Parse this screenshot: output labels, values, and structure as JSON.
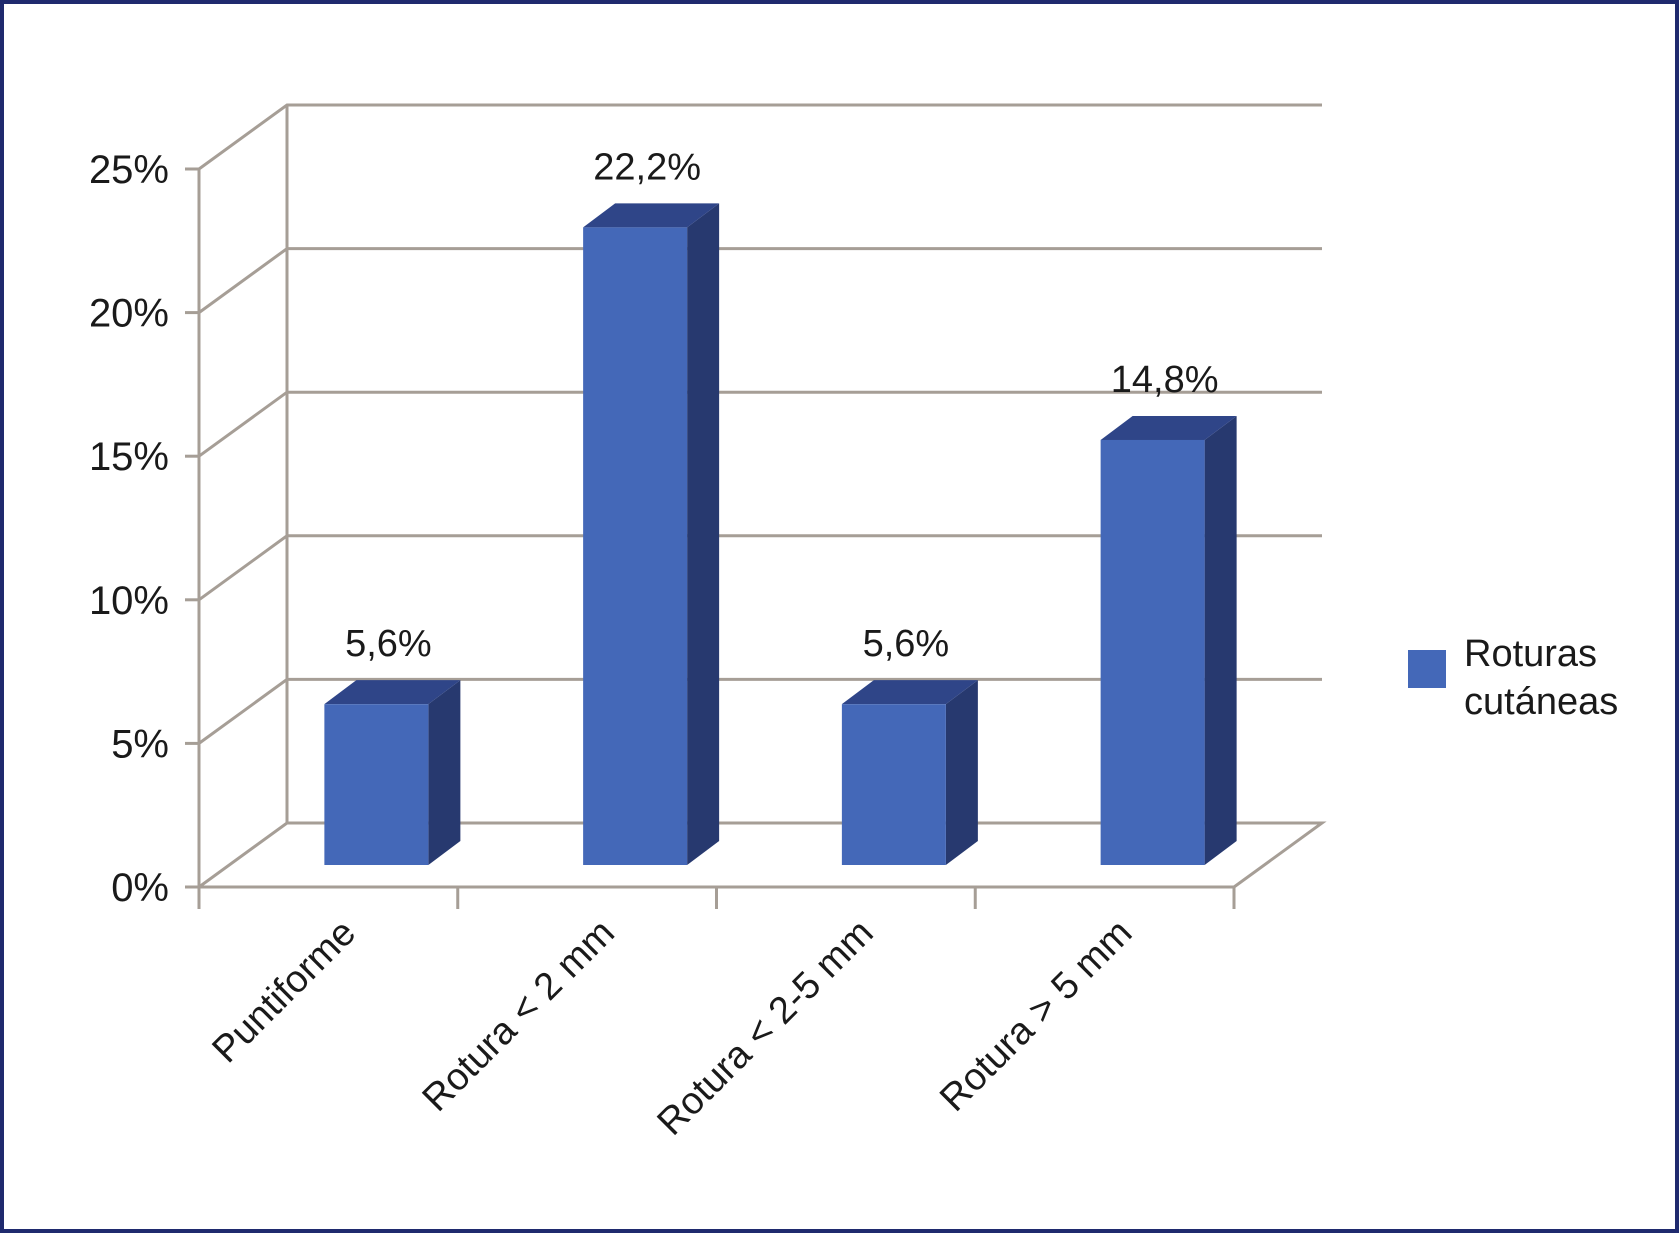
{
  "chart_data": {
    "type": "bar",
    "categories": [
      "Puntiforme",
      "Rotura < 2 mm",
      "Rotura < 2-5 mm",
      "Rotura > 5 mm"
    ],
    "series": [
      {
        "name": "Roturas cutáneas",
        "values": [
          5.6,
          22.2,
          5.6,
          14.8
        ],
        "labels": [
          "5,6%",
          "22,2%",
          "5,6%",
          "14,8%"
        ],
        "color": "#4468b8"
      }
    ],
    "ylim": [
      0,
      25
    ],
    "yticks": [
      0,
      5,
      10,
      15,
      20,
      25
    ],
    "ytick_labels": [
      "0%",
      "5%",
      "10%",
      "15%",
      "20%",
      "25%"
    ],
    "title": "",
    "xlabel": "",
    "ylabel": "",
    "grid": true,
    "three_d": true,
    "legend_position": "right",
    "colors": {
      "bar_front": "#4468b8",
      "bar_side": "#27396f",
      "bar_top": "#2f4588",
      "grid": "#a69e96",
      "frame_border": "#1f2a6e"
    }
  }
}
